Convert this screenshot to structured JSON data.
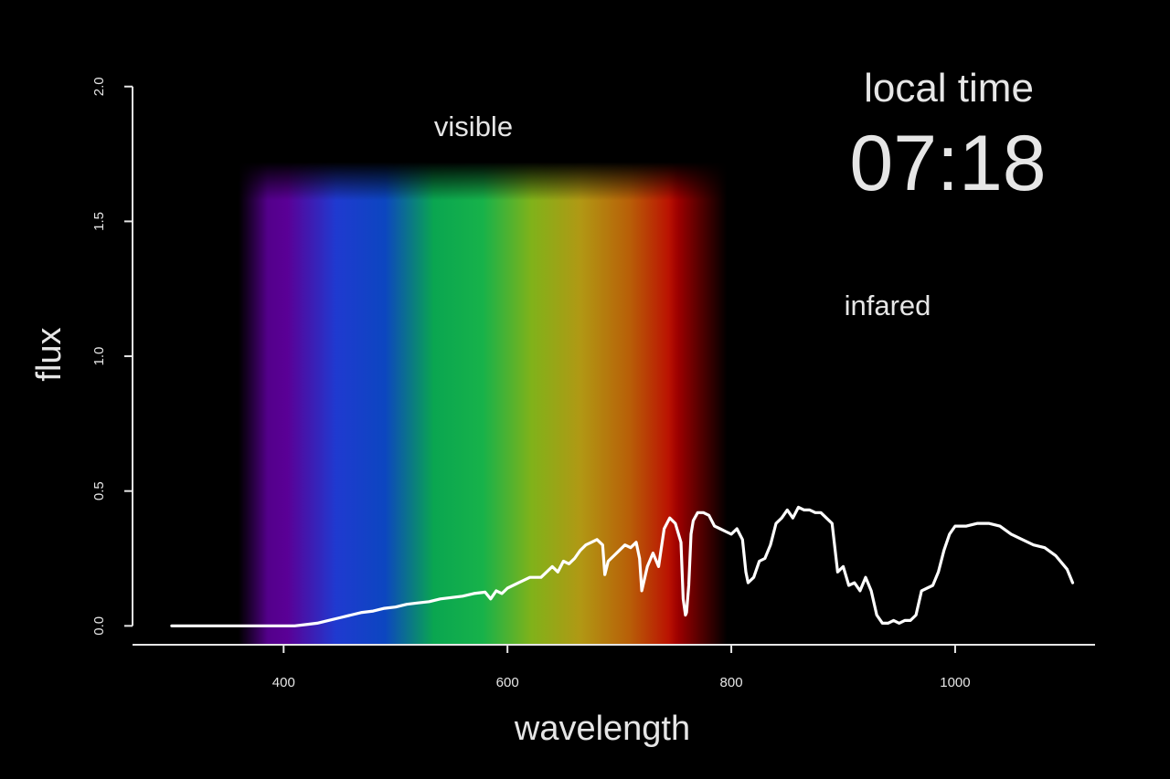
{
  "chart_data": {
    "type": "line",
    "title": "",
    "xlabel": "wavelength",
    "ylabel": "flux",
    "xlim": [
      265,
      1125
    ],
    "ylim": [
      -0.07,
      2.05
    ],
    "x_ticks": [
      "400",
      "600",
      "800",
      "1000"
    ],
    "x_tick_values": [
      400,
      600,
      800,
      1000
    ],
    "y_ticks": [
      "0.0",
      "0.5",
      "1.0",
      "1.5",
      "2.0"
    ],
    "y_tick_values": [
      0.0,
      0.5,
      1.0,
      1.5,
      2.0
    ],
    "grid": false,
    "legend": "none",
    "line_color": "#ffffff",
    "background": "#000000",
    "visible_band": {
      "range": [
        380,
        780
      ],
      "flux_top": 1.7,
      "colors": [
        "#4a007a",
        "#5a0096",
        "#1f3ad0",
        "#0c46c0",
        "#0aa650",
        "#17b24a",
        "#80b21a",
        "#b19814",
        "#b85f08",
        "#bb0000",
        "#b40000"
      ]
    },
    "annotations": [
      {
        "text": "visible"
      },
      {
        "text": "infared"
      }
    ],
    "series": [
      {
        "x": [
          300,
          320,
          340,
          360,
          380,
          400,
          410,
          420,
          430,
          440,
          450,
          460,
          470,
          480,
          490,
          500,
          510,
          520,
          530,
          540,
          550,
          560,
          570,
          580,
          585,
          590,
          595,
          600,
          610,
          620,
          630,
          640,
          645,
          650,
          655,
          660,
          665,
          670,
          675,
          680,
          685,
          687,
          690,
          695,
          700,
          705,
          710,
          715,
          718,
          720,
          725,
          730,
          735,
          740,
          745,
          750,
          755,
          757,
          759,
          760,
          762,
          764,
          766,
          770,
          775,
          780,
          785,
          790,
          795,
          800,
          805,
          810,
          813,
          815,
          820,
          825,
          830,
          835,
          840,
          845,
          850,
          855,
          860,
          865,
          870,
          875,
          880,
          885,
          890,
          895,
          900,
          905,
          910,
          915,
          920,
          925,
          930,
          935,
          940,
          945,
          950,
          955,
          960,
          965,
          970,
          975,
          980,
          985,
          990,
          995,
          1000,
          1010,
          1020,
          1030,
          1040,
          1050,
          1060,
          1070,
          1080,
          1090,
          1100,
          1105
        ],
        "y": [
          0.0,
          0.0,
          0.0,
          0.0,
          0.0,
          0.0,
          0.0,
          0.005,
          0.01,
          0.02,
          0.03,
          0.04,
          0.05,
          0.055,
          0.065,
          0.07,
          0.08,
          0.085,
          0.09,
          0.1,
          0.105,
          0.11,
          0.12,
          0.125,
          0.1,
          0.13,
          0.12,
          0.14,
          0.16,
          0.18,
          0.18,
          0.22,
          0.2,
          0.24,
          0.23,
          0.25,
          0.28,
          0.3,
          0.31,
          0.32,
          0.3,
          0.19,
          0.24,
          0.26,
          0.28,
          0.3,
          0.29,
          0.31,
          0.25,
          0.13,
          0.22,
          0.27,
          0.22,
          0.36,
          0.4,
          0.38,
          0.31,
          0.1,
          0.04,
          0.05,
          0.15,
          0.34,
          0.39,
          0.42,
          0.42,
          0.41,
          0.37,
          0.36,
          0.35,
          0.34,
          0.36,
          0.32,
          0.2,
          0.16,
          0.18,
          0.24,
          0.25,
          0.3,
          0.38,
          0.4,
          0.43,
          0.4,
          0.44,
          0.43,
          0.43,
          0.42,
          0.42,
          0.4,
          0.38,
          0.2,
          0.22,
          0.15,
          0.16,
          0.13,
          0.18,
          0.13,
          0.04,
          0.01,
          0.01,
          0.02,
          0.01,
          0.02,
          0.02,
          0.04,
          0.13,
          0.14,
          0.15,
          0.2,
          0.28,
          0.34,
          0.37,
          0.37,
          0.38,
          0.38,
          0.37,
          0.34,
          0.32,
          0.3,
          0.29,
          0.26,
          0.21,
          0.16
        ]
      }
    ]
  },
  "clock": {
    "label": "local time",
    "time": "07:18"
  }
}
